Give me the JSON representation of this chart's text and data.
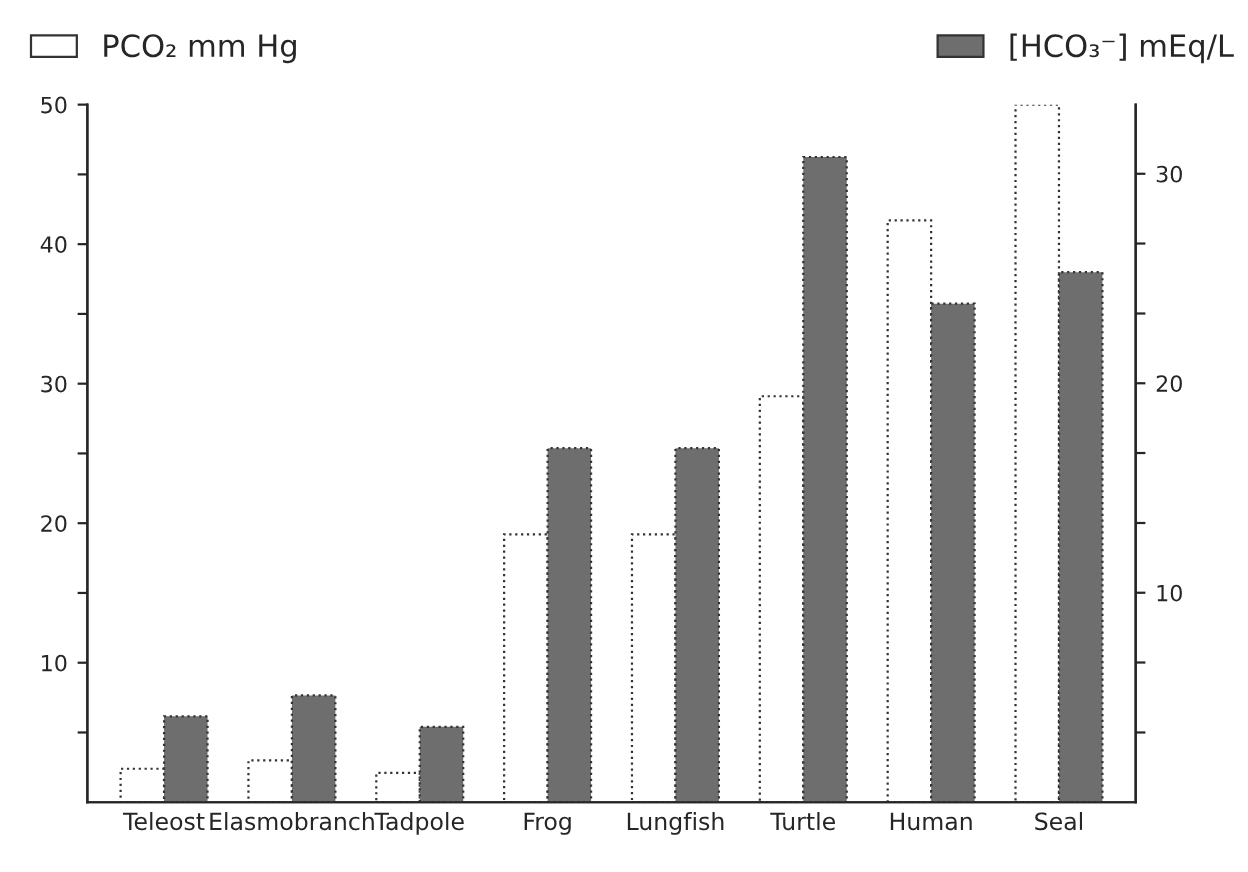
{
  "chart_data": {
    "type": "bar",
    "categories": [
      "Teleost",
      "Elasmobranch",
      "Tadpole",
      "Frog",
      "Lungfish",
      "Turtle",
      "Human",
      "Seal"
    ],
    "series": [
      {
        "name": "PCO₂ mm Hg",
        "color": "#ffffff",
        "values": [
          2.4,
          3.0,
          2.1,
          19.2,
          19.2,
          29.1,
          41.7,
          50
        ]
      },
      {
        "name": "[HCO₃⁻] mEq/L",
        "color": "#6e6e6e",
        "axis": "y2",
        "values": [
          4.1,
          5.1,
          3.6,
          16.9,
          16.9,
          30.8,
          23.8,
          25.3
        ]
      }
    ],
    "ylim": [
      0,
      50
    ],
    "yticks": [
      {
        "value": 5,
        "label": null
      },
      10,
      {
        "value": 15,
        "label": null
      },
      20,
      {
        "value": 25,
        "label": null
      },
      30,
      {
        "value": 35,
        "label": null
      },
      40,
      {
        "value": 45,
        "label": null
      },
      50
    ],
    "y2lim": [
      0,
      33.3
    ],
    "y2ticks": [
      {
        "value": 3.33,
        "label": null
      },
      {
        "value": 6.67,
        "label": null
      },
      10,
      {
        "value": 13.33,
        "label": null
      },
      {
        "value": 16.67,
        "label": null
      },
      20,
      {
        "value": 23.33,
        "label": null
      },
      {
        "value": 26.67,
        "label": null
      },
      30
    ],
    "grid": false,
    "legend": "top"
  }
}
